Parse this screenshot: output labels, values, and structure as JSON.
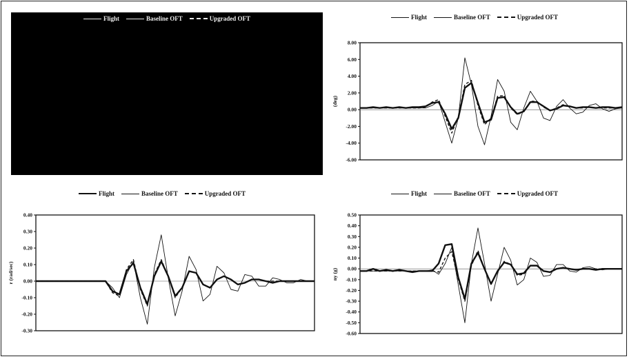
{
  "legend": {
    "flight": "Flight",
    "baseline": "Baseline OFT",
    "upgraded": "Upgraded OFT"
  },
  "colors": {
    "line": "#111111",
    "dark_panel": "#000000"
  },
  "chart_data": [
    {
      "type": "line",
      "title": "",
      "xlabel": "",
      "ylabel": "",
      "note": "obscured black panel",
      "series": []
    },
    {
      "type": "line",
      "ylabel": "(deg)",
      "ylim": [
        -6,
        8
      ],
      "yticks": [
        "8.00",
        "6.00",
        "4.00",
        "2.00",
        "0.00",
        "-2.00",
        "-4.00",
        "-6.00"
      ],
      "ytick_values": [
        8,
        6,
        4,
        2,
        0,
        -2,
        -4,
        -6
      ],
      "x": [
        0,
        1,
        2,
        3,
        4,
        5,
        6,
        7,
        8,
        9,
        10,
        11,
        12,
        13,
        14,
        15,
        16,
        17,
        18,
        19,
        20,
        21,
        22,
        23,
        24,
        25,
        26,
        27,
        28,
        29,
        30,
        31,
        32,
        33,
        34,
        35,
        36,
        37,
        38,
        39,
        40
      ],
      "series": [
        {
          "name": "Flight",
          "values": [
            0.2,
            0.2,
            0.3,
            0.2,
            0.3,
            0.2,
            0.3,
            0.2,
            0.3,
            0.3,
            0.4,
            0.8,
            0.9,
            -0.5,
            -2.3,
            -1.0,
            2.6,
            3.2,
            0.8,
            -1.5,
            -1.2,
            1.4,
            1.5,
            0.3,
            -0.5,
            -0.2,
            0.9,
            0.9,
            0.4,
            -0.1,
            0.1,
            0.5,
            0.4,
            0.2,
            0.3,
            0.3,
            0.2,
            0.3,
            0.3,
            0.2,
            0.3
          ]
        },
        {
          "name": "Baseline OFT",
          "values": [
            0.2,
            0.2,
            0.2,
            0.2,
            0.2,
            0.2,
            0.2,
            0.2,
            0.2,
            0.2,
            0.2,
            0.5,
            1.0,
            -1.5,
            -4.0,
            -1.0,
            6.2,
            3.0,
            -2.0,
            -4.2,
            -0.8,
            3.6,
            2.2,
            -1.5,
            -2.4,
            0.2,
            2.2,
            1.0,
            -1.0,
            -1.3,
            0.4,
            1.2,
            0.2,
            -0.5,
            -0.3,
            0.5,
            0.7,
            0.1,
            -0.2,
            0.1,
            0.2
          ]
        },
        {
          "name": "Upgraded OFT",
          "values": [
            0.2,
            0.2,
            0.2,
            0.2,
            0.2,
            0.2,
            0.2,
            0.2,
            0.2,
            0.2,
            0.3,
            0.9,
            1.2,
            -0.8,
            -2.8,
            -0.8,
            3.0,
            3.5,
            0.5,
            -1.8,
            -1.0,
            1.6,
            1.7,
            0.2,
            -0.6,
            -0.2,
            1.0,
            1.0,
            0.3,
            -0.1,
            0.2,
            0.6,
            0.4,
            0.2,
            0.2,
            0.3,
            0.2,
            0.2,
            0.2,
            0.2,
            0.3
          ]
        }
      ]
    },
    {
      "type": "line",
      "ylabel": "r (rad/sec)",
      "ylim": [
        -0.3,
        0.4
      ],
      "yticks": [
        "0.40",
        "0.30",
        "0.20",
        "0.10",
        "0.00",
        "-0.10",
        "-0.20",
        "-0.30"
      ],
      "ytick_values": [
        0.4,
        0.3,
        0.2,
        0.1,
        0,
        -0.1,
        -0.2,
        -0.3
      ],
      "x": [
        0,
        1,
        2,
        3,
        4,
        5,
        6,
        7,
        8,
        9,
        10,
        11,
        12,
        13,
        14,
        15,
        16,
        17,
        18,
        19,
        20,
        21,
        22,
        23,
        24,
        25,
        26,
        27,
        28,
        29,
        30,
        31,
        32,
        33,
        34,
        35,
        36,
        37,
        38,
        39,
        40
      ],
      "series": [
        {
          "name": "Flight",
          "values": [
            0.0,
            0.0,
            0.0,
            0.0,
            0.0,
            0.0,
            0.0,
            0.0,
            0.0,
            0.0,
            0.0,
            -0.06,
            -0.08,
            0.06,
            0.11,
            -0.04,
            -0.14,
            0.03,
            0.12,
            0.03,
            -0.09,
            -0.04,
            0.06,
            0.05,
            -0.02,
            -0.04,
            0.01,
            0.03,
            0.01,
            -0.02,
            -0.01,
            0.01,
            0.01,
            0.0,
            -0.01,
            0.0,
            0.0,
            0.0,
            0.0,
            0.0,
            0.0
          ]
        },
        {
          "name": "Baseline OFT",
          "values": [
            0.0,
            0.0,
            0.0,
            0.0,
            0.0,
            0.0,
            0.0,
            0.0,
            0.0,
            0.0,
            0.0,
            -0.04,
            -0.1,
            0.04,
            0.12,
            -0.1,
            -0.26,
            0.08,
            0.28,
            0.02,
            -0.21,
            -0.06,
            0.15,
            0.07,
            -0.12,
            -0.08,
            0.09,
            0.05,
            -0.05,
            -0.06,
            0.04,
            0.03,
            -0.03,
            -0.03,
            0.02,
            0.01,
            -0.01,
            -0.01,
            0.01,
            0.0,
            0.0
          ]
        },
        {
          "name": "Upgraded OFT",
          "values": [
            0.0,
            0.0,
            0.0,
            0.0,
            0.0,
            0.0,
            0.0,
            0.0,
            0.0,
            0.0,
            0.0,
            -0.07,
            -0.09,
            0.07,
            0.13,
            -0.05,
            -0.15,
            0.04,
            0.13,
            0.03,
            -0.1,
            -0.04,
            0.06,
            0.05,
            -0.02,
            -0.04,
            0.01,
            0.03,
            0.01,
            -0.02,
            -0.01,
            0.01,
            0.01,
            0.0,
            0.0,
            0.0,
            0.0,
            0.0,
            0.0,
            0.0,
            0.0
          ]
        }
      ]
    },
    {
      "type": "line",
      "ylabel": "ny (g)",
      "ylim": [
        -0.6,
        0.5
      ],
      "yticks": [
        "0.50",
        "0.40",
        "0.30",
        "0.20",
        "0.10",
        "0.00",
        "-0.10",
        "-0.20",
        "-0.30",
        "-0.40",
        "-0.50",
        "-0.60"
      ],
      "ytick_values": [
        0.5,
        0.4,
        0.3,
        0.2,
        0.1,
        0,
        -0.1,
        -0.2,
        -0.3,
        -0.4,
        -0.5,
        -0.6
      ],
      "x": [
        0,
        1,
        2,
        3,
        4,
        5,
        6,
        7,
        8,
        9,
        10,
        11,
        12,
        13,
        14,
        15,
        16,
        17,
        18,
        19,
        20,
        21,
        22,
        23,
        24,
        25,
        26,
        27,
        28,
        29,
        30,
        31,
        32,
        33,
        34,
        35,
        36,
        37,
        38,
        39,
        40
      ],
      "series": [
        {
          "name": "Flight",
          "values": [
            -0.02,
            -0.02,
            0.0,
            -0.02,
            -0.01,
            -0.02,
            -0.01,
            -0.02,
            -0.03,
            -0.02,
            -0.02,
            -0.02,
            0.05,
            0.22,
            0.23,
            -0.08,
            -0.28,
            0.05,
            0.15,
            0.0,
            -0.14,
            -0.02,
            0.06,
            0.04,
            -0.05,
            -0.04,
            0.03,
            0.03,
            -0.02,
            -0.03,
            0.0,
            0.01,
            0.0,
            -0.01,
            0.0,
            0.0,
            -0.01,
            0.0,
            0.0,
            0.0,
            0.0
          ]
        },
        {
          "name": "Baseline OFT",
          "values": [
            -0.02,
            -0.02,
            -0.02,
            -0.02,
            -0.02,
            -0.02,
            -0.02,
            -0.02,
            -0.02,
            -0.02,
            -0.02,
            -0.01,
            -0.05,
            0.05,
            0.2,
            -0.15,
            -0.5,
            0.05,
            0.38,
            0.05,
            -0.3,
            -0.05,
            0.2,
            0.08,
            -0.15,
            -0.1,
            0.1,
            0.06,
            -0.07,
            -0.06,
            0.04,
            0.04,
            -0.02,
            -0.03,
            0.01,
            0.02,
            0.0,
            -0.01,
            0.0,
            0.0,
            0.0
          ]
        },
        {
          "name": "Upgraded OFT",
          "values": [
            -0.02,
            -0.02,
            -0.02,
            -0.02,
            -0.02,
            -0.02,
            -0.02,
            -0.02,
            -0.02,
            -0.02,
            -0.02,
            -0.02,
            -0.03,
            0.1,
            0.16,
            -0.1,
            -0.3,
            0.03,
            0.17,
            0.0,
            -0.13,
            -0.03,
            0.07,
            0.04,
            -0.06,
            -0.05,
            0.03,
            0.03,
            -0.02,
            -0.03,
            0.0,
            0.01,
            0.0,
            -0.01,
            0.0,
            0.0,
            0.0,
            0.0,
            0.0,
            0.0,
            0.0
          ]
        }
      ]
    }
  ]
}
